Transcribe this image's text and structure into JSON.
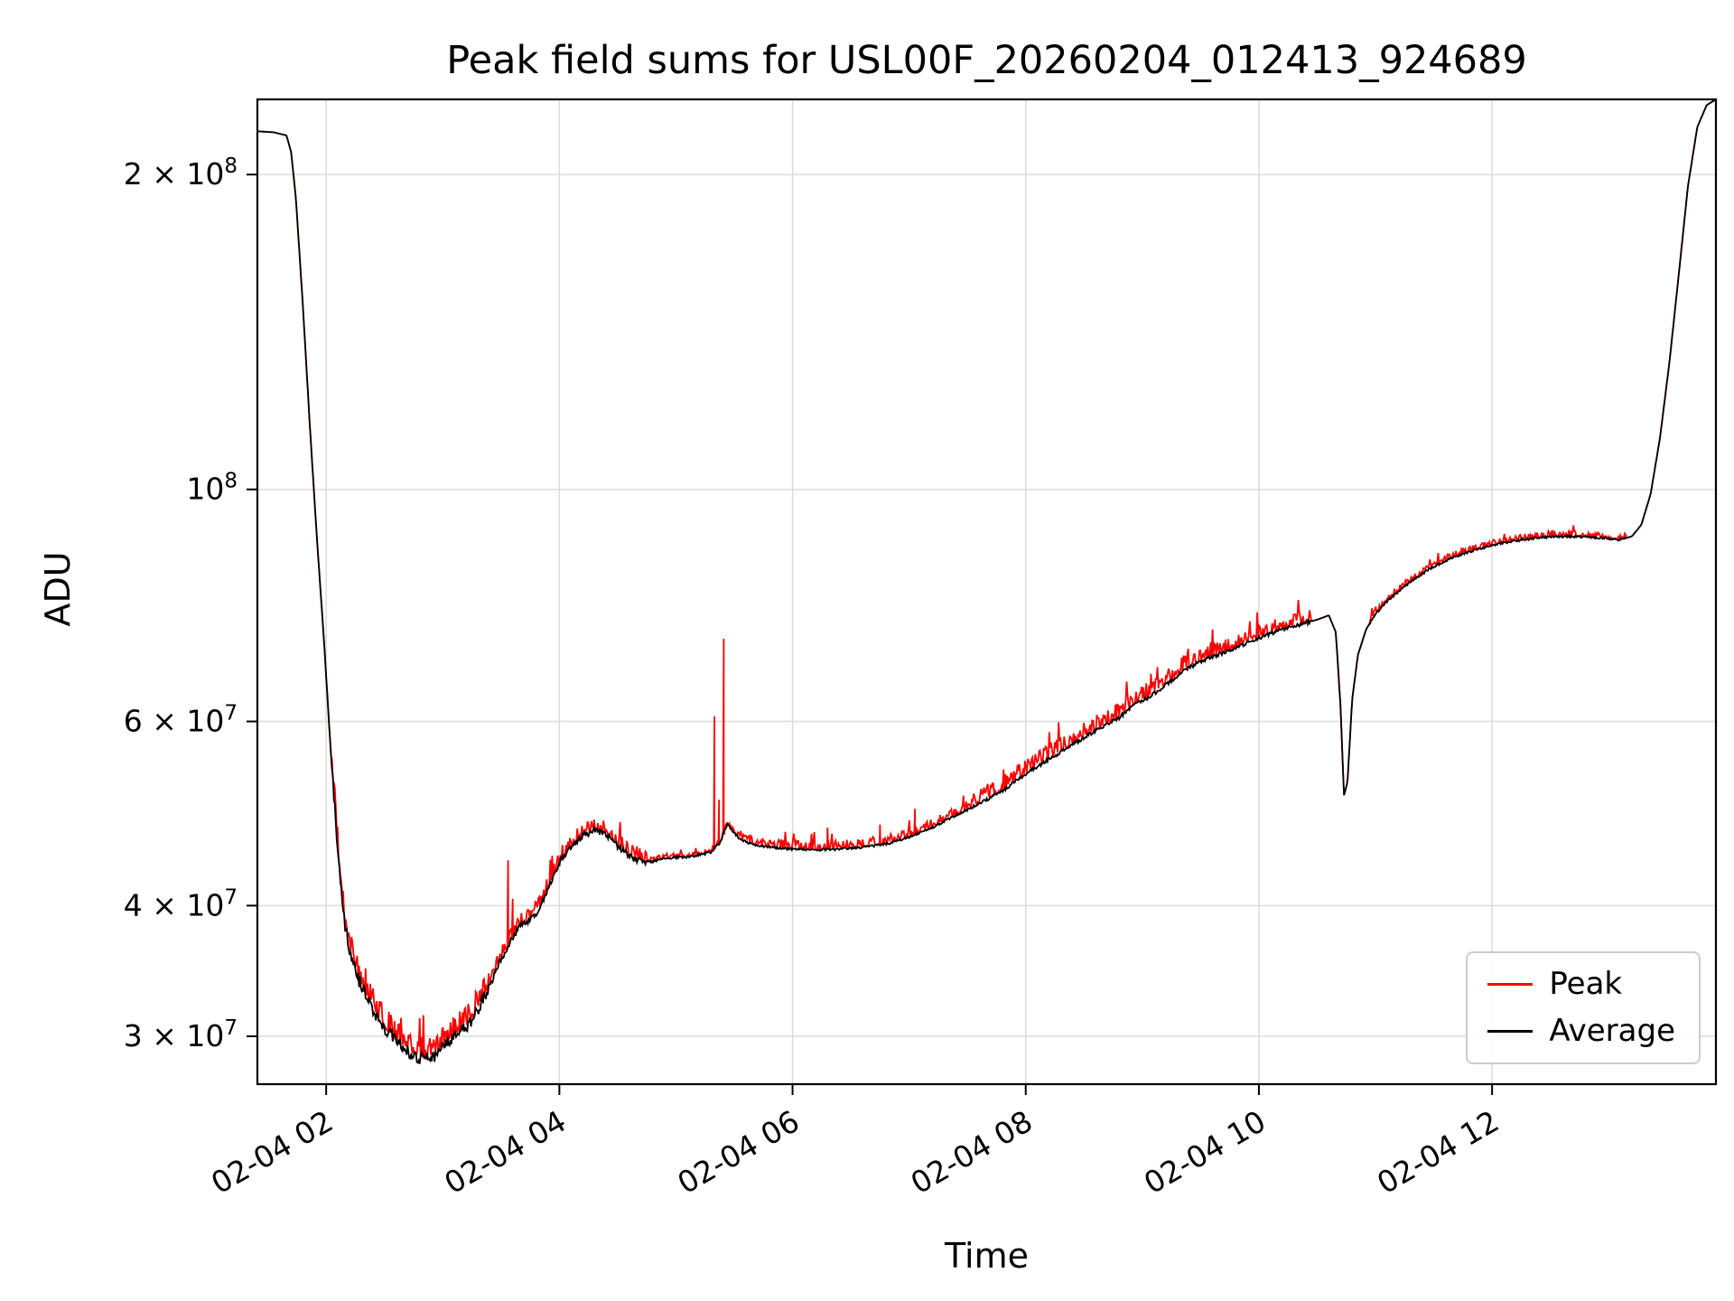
{
  "chart_data": {
    "type": "line",
    "title": "Peak field sums for USL00F_20260204_012413_924689",
    "xlabel": "Time",
    "ylabel": "ADU",
    "y_scale": "log",
    "x_unit": "hours after 2026-02-04 00:00",
    "x_range": [
      1.41,
      13.92
    ],
    "y_range": [
      27000000.0,
      236000000.0
    ],
    "grid": true,
    "grid_color": "#dcdcdc",
    "x_ticks": [
      {
        "v": 2,
        "label": "02-04 02"
      },
      {
        "v": 4,
        "label": "02-04 04"
      },
      {
        "v": 6,
        "label": "02-04 06"
      },
      {
        "v": 8,
        "label": "02-04 08"
      },
      {
        "v": 10,
        "label": "02-04 10"
      },
      {
        "v": 12,
        "label": "02-04 12"
      }
    ],
    "y_ticks": [
      {
        "v": 200000000.0,
        "label": "2 × 10^8"
      },
      {
        "v": 100000000.0,
        "label": "10^8"
      },
      {
        "v": 60000000.0,
        "label": "6 × 10^7"
      },
      {
        "v": 40000000.0,
        "label": "4 × 10^7"
      },
      {
        "v": 30000000.0,
        "label": "3 × 10^7"
      }
    ],
    "base_keypoints": [
      [
        1.41,
        220000000.0
      ],
      [
        1.55,
        219500000.0
      ],
      [
        1.66,
        218000000.0
      ],
      [
        1.7,
        210000000.0
      ],
      [
        1.74,
        190000000.0
      ],
      [
        1.8,
        150000000.0
      ],
      [
        1.86,
        115000000.0
      ],
      [
        1.92,
        90000000.0
      ],
      [
        1.98,
        72000000.0
      ],
      [
        2.04,
        56000000.0
      ],
      [
        2.1,
        45000000.0
      ],
      [
        2.16,
        38500000.0
      ],
      [
        2.22,
        35500000.0
      ],
      [
        2.3,
        33500000.0
      ],
      [
        2.4,
        31800000.0
      ],
      [
        2.5,
        30500000.0
      ],
      [
        2.62,
        29500000.0
      ],
      [
        2.74,
        28800000.0
      ],
      [
        2.85,
        28500000.0
      ],
      [
        2.95,
        28800000.0
      ],
      [
        3.05,
        29700000.0
      ],
      [
        3.15,
        30200000.0
      ],
      [
        3.22,
        30700000.0
      ],
      [
        3.3,
        31800000.0
      ],
      [
        3.4,
        33500000.0
      ],
      [
        3.5,
        35500000.0
      ],
      [
        3.58,
        37000000.0
      ],
      [
        3.66,
        38200000.0
      ],
      [
        3.74,
        38700000.0
      ],
      [
        3.82,
        39500000.0
      ],
      [
        3.9,
        41500000.0
      ],
      [
        4.0,
        44000000.0
      ],
      [
        4.1,
        45500000.0
      ],
      [
        4.2,
        46600000.0
      ],
      [
        4.3,
        47200000.0
      ],
      [
        4.4,
        46800000.0
      ],
      [
        4.5,
        45600000.0
      ],
      [
        4.6,
        44600000.0
      ],
      [
        4.7,
        44100000.0
      ],
      [
        4.8,
        44100000.0
      ],
      [
        4.9,
        44400000.0
      ],
      [
        5.0,
        44500000.0
      ],
      [
        5.1,
        44500000.0
      ],
      [
        5.2,
        44700000.0
      ],
      [
        5.3,
        45000000.0
      ],
      [
        5.38,
        46000000.0
      ],
      [
        5.44,
        47800000.0
      ],
      [
        5.48,
        47200000.0
      ],
      [
        5.55,
        46300000.0
      ],
      [
        5.65,
        45800000.0
      ],
      [
        5.8,
        45500000.0
      ],
      [
        6.0,
        45300000.0
      ],
      [
        6.2,
        45200000.0
      ],
      [
        6.4,
        45300000.0
      ],
      [
        6.6,
        45500000.0
      ],
      [
        6.8,
        45800000.0
      ],
      [
        7.0,
        46500000.0
      ],
      [
        7.2,
        47500000.0
      ],
      [
        7.4,
        48800000.0
      ],
      [
        7.6,
        50000000.0
      ],
      [
        7.8,
        51500000.0
      ],
      [
        8.0,
        53500000.0
      ],
      [
        8.2,
        55200000.0
      ],
      [
        8.4,
        57000000.0
      ],
      [
        8.6,
        58800000.0
      ],
      [
        8.8,
        60500000.0
      ],
      [
        8.95,
        62500000.0
      ],
      [
        9.05,
        63200000.0
      ],
      [
        9.2,
        65000000.0
      ],
      [
        9.35,
        67000000.0
      ],
      [
        9.5,
        68500000.0
      ],
      [
        9.65,
        69500000.0
      ],
      [
        9.8,
        70500000.0
      ],
      [
        9.95,
        71800000.0
      ],
      [
        10.1,
        72800000.0
      ],
      [
        10.25,
        73800000.0
      ],
      [
        10.4,
        74500000.0
      ],
      [
        10.52,
        75200000.0
      ],
      [
        10.6,
        75800000.0
      ],
      [
        10.66,
        73000000.0
      ],
      [
        10.7,
        62000000.0
      ],
      [
        10.73,
        51000000.0
      ],
      [
        10.76,
        52500000.0
      ],
      [
        10.8,
        63000000.0
      ],
      [
        10.85,
        69500000.0
      ],
      [
        10.92,
        73500000.0
      ],
      [
        11.0,
        76000000.0
      ],
      [
        11.1,
        78200000.0
      ],
      [
        11.25,
        80800000.0
      ],
      [
        11.45,
        83800000.0
      ],
      [
        11.65,
        86000000.0
      ],
      [
        11.85,
        87500000.0
      ],
      [
        12.05,
        88700000.0
      ],
      [
        12.25,
        89500000.0
      ],
      [
        12.45,
        90000000.0
      ],
      [
        12.65,
        90200000.0
      ],
      [
        12.85,
        90000000.0
      ],
      [
        13.0,
        89700000.0
      ],
      [
        13.1,
        89500000.0
      ],
      [
        13.2,
        90200000.0
      ],
      [
        13.28,
        92500000.0
      ],
      [
        13.36,
        99000000.0
      ],
      [
        13.44,
        112000000.0
      ],
      [
        13.52,
        132000000.0
      ],
      [
        13.6,
        160000000.0
      ],
      [
        13.68,
        195000000.0
      ],
      [
        13.76,
        222000000.0
      ],
      [
        13.84,
        233000000.0
      ],
      [
        13.92,
        236000000.0
      ]
    ],
    "series": [
      {
        "name": "Peak",
        "color": "#ff0000",
        "line_width": 1.8,
        "noise_mode": "up",
        "noise_regions": [
          {
            "x0": 2.05,
            "x1": 3.4,
            "amp": 0.05
          },
          {
            "x0": 3.4,
            "x1": 4.75,
            "amp": 0.03
          },
          {
            "x0": 4.75,
            "x1": 5.55,
            "amp": 0.01
          },
          {
            "x0": 5.55,
            "x1": 7.55,
            "amp": 0.02
          },
          {
            "x0": 7.55,
            "x1": 9.75,
            "amp": 0.035
          },
          {
            "x0": 9.75,
            "x1": 10.45,
            "amp": 0.03
          },
          {
            "x0": 10.95,
            "x1": 13.15,
            "amp": 0.012
          }
        ],
        "spikes": [
          [
            3.56,
            44200000.0
          ],
          [
            3.6,
            40600000.0
          ],
          [
            5.33,
            60700000.0
          ],
          [
            5.37,
            50500000.0
          ],
          [
            5.41,
            72000000.0
          ],
          [
            6.3,
            47500000.0
          ],
          [
            6.75,
            47800000.0
          ],
          [
            7.05,
            49500000.0
          ]
        ]
      },
      {
        "name": "Average",
        "color": "#000000",
        "line_width": 1.8,
        "noise_mode": "sym",
        "noise_regions": [
          {
            "x0": 2.05,
            "x1": 3.4,
            "amp": 0.03
          },
          {
            "x0": 3.4,
            "x1": 4.75,
            "amp": 0.014
          },
          {
            "x0": 4.75,
            "x1": 5.55,
            "amp": 0.006
          },
          {
            "x0": 5.55,
            "x1": 7.55,
            "amp": 0.005
          },
          {
            "x0": 7.55,
            "x1": 9.75,
            "amp": 0.008
          },
          {
            "x0": 9.75,
            "x1": 10.45,
            "amp": 0.008
          },
          {
            "x0": 10.95,
            "x1": 13.15,
            "amp": 0.005
          }
        ],
        "spikes": []
      }
    ],
    "legend": {
      "position": "lower right",
      "entries": [
        "Peak",
        "Average"
      ]
    }
  }
}
